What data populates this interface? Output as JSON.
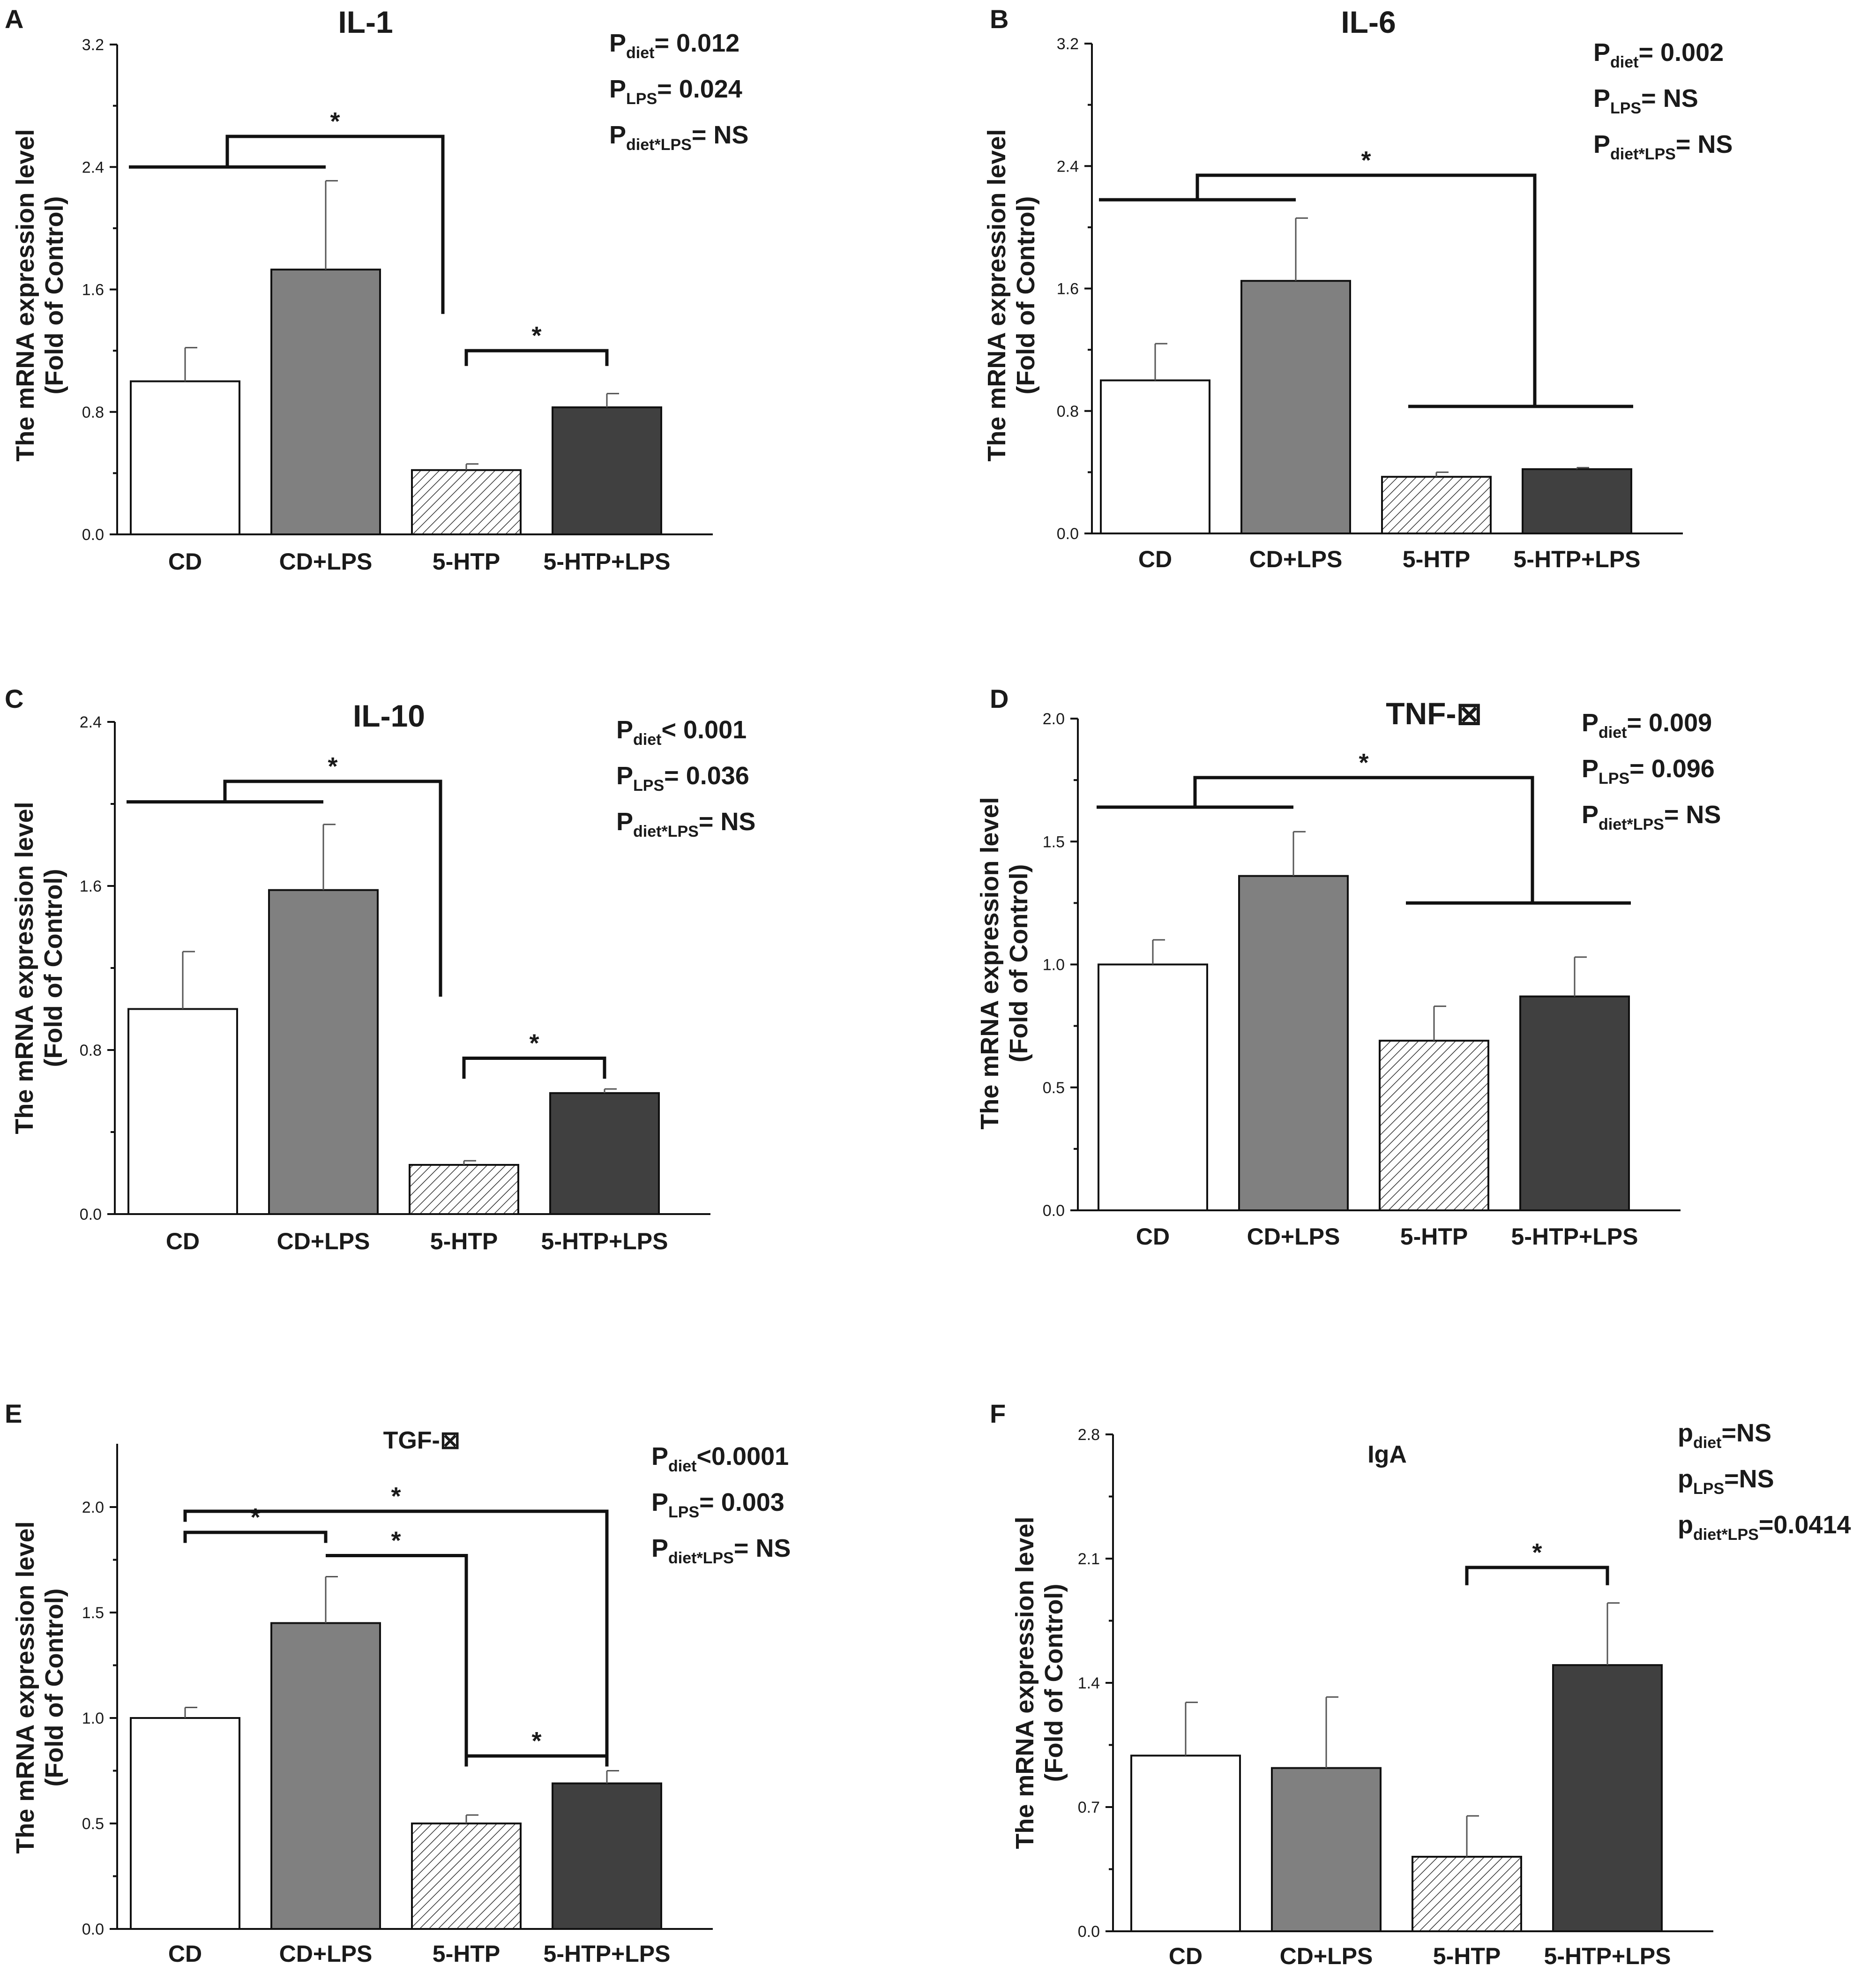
{
  "figure": {
    "panels": [
      {
        "letter": "A",
        "chart_data": {
          "type": "bar",
          "title": "IL-1",
          "title_style": "large",
          "ylabel": [
            "The mRNA expression level",
            "(Fold of Control)"
          ],
          "xlabel": "",
          "categories": [
            "CD",
            "CD+LPS",
            "5-HTP",
            "5-HTP+LPS"
          ],
          "values": [
            1.0,
            1.73,
            0.42,
            0.83
          ],
          "errors": [
            0.22,
            0.58,
            0.04,
            0.09
          ],
          "ylim": [
            0,
            3.2
          ],
          "yticks": [
            0,
            0.8,
            1.6,
            2.4,
            3.2
          ],
          "ytick_labels": [
            "0.0",
            "0.8",
            "1.6",
            "2.4",
            "3.2"
          ],
          "stats": [
            {
              "p": "P",
              "sub": "diet",
              "text": "= 0.012"
            },
            {
              "p": "P",
              "sub": "LPS",
              "text": "= 0.024"
            },
            {
              "p": "P",
              "sub": "diet*LPS",
              "text": "= NS"
            }
          ],
          "significance": [
            {
              "kind": "group",
              "a": [
                0,
                1
              ],
              "b": [
                2
              ],
              "y_a": 2.4,
              "y_top": 2.6,
              "y_b": 1.44,
              "label": "*"
            },
            {
              "kind": "pair",
              "a": 2,
              "b": 3,
              "y_low": 1.1,
              "y_top": 1.2,
              "label": "*"
            }
          ]
        }
      },
      {
        "letter": "B",
        "chart_data": {
          "type": "bar",
          "title": "IL-6",
          "title_style": "large",
          "ylabel": [
            "The mRNA expression level",
            "(Fold of Control)"
          ],
          "xlabel": "",
          "categories": [
            "CD",
            "CD+LPS",
            "5-HTP",
            "5-HTP+LPS"
          ],
          "values": [
            1.0,
            1.65,
            0.37,
            0.42
          ],
          "errors": [
            0.24,
            0.41,
            0.03,
            0.01
          ],
          "ylim": [
            0,
            3.2
          ],
          "yticks": [
            0,
            0.8,
            1.6,
            2.4,
            3.2
          ],
          "ytick_labels": [
            "0.0",
            "0.8",
            "1.6",
            "2.4",
            "3.2"
          ],
          "stats": [
            {
              "p": "P",
              "sub": "diet",
              "text": "= 0.002"
            },
            {
              "p": "P",
              "sub": "LPS",
              "text": "= NS"
            },
            {
              "p": "P",
              "sub": "diet*LPS",
              "text": "= NS"
            }
          ],
          "significance": [
            {
              "kind": "group",
              "a": [
                0,
                1
              ],
              "b": [
                2,
                3
              ],
              "y_a": 2.18,
              "y_top": 2.34,
              "y_b": 0.83,
              "label": "*"
            }
          ]
        }
      },
      {
        "letter": "C",
        "chart_data": {
          "type": "bar",
          "title": "IL-10",
          "title_style": "large",
          "ylabel": [
            "The mRNA expression level",
            "(Fold of Control)"
          ],
          "xlabel": "",
          "categories": [
            "CD",
            "CD+LPS",
            "5-HTP",
            "5-HTP+LPS"
          ],
          "values": [
            1.0,
            1.58,
            0.24,
            0.59
          ],
          "errors": [
            0.28,
            0.32,
            0.02,
            0.02
          ],
          "ylim": [
            0,
            2.4
          ],
          "yticks": [
            0,
            0.8,
            1.6,
            2.4
          ],
          "ytick_labels": [
            "0.0",
            "0.8",
            "1.6",
            "2.4"
          ],
          "stats": [
            {
              "p": "P",
              "sub": "diet",
              "text": "< 0.001"
            },
            {
              "p": "P",
              "sub": "LPS",
              "text": "= 0.036"
            },
            {
              "p": "P",
              "sub": "diet*LPS",
              "text": "= NS"
            }
          ],
          "significance": [
            {
              "kind": "group",
              "a": [
                0,
                1
              ],
              "b": [
                2
              ],
              "y_a": 2.01,
              "y_top": 2.11,
              "y_b": 1.06,
              "label": "*"
            },
            {
              "kind": "pair",
              "a": 2,
              "b": 3,
              "y_low": 0.66,
              "y_top": 0.76,
              "label": "*"
            }
          ]
        }
      },
      {
        "letter": "D",
        "chart_data": {
          "type": "bar",
          "title": "TNF-⊠",
          "title_style": "large",
          "ylabel": [
            "The mRNA expression level",
            "(Fold of Control)"
          ],
          "xlabel": "",
          "categories": [
            "CD",
            "CD+LPS",
            "5-HTP",
            "5-HTP+LPS"
          ],
          "values": [
            1.0,
            1.36,
            0.69,
            0.87
          ],
          "errors": [
            0.1,
            0.18,
            0.14,
            0.16
          ],
          "ylim": [
            0,
            2.0
          ],
          "yticks": [
            0,
            0.5,
            1.0,
            1.5,
            2.0
          ],
          "ytick_labels": [
            "0.0",
            "0.5",
            "1.0",
            "1.5",
            "2.0"
          ],
          "stats": [
            {
              "p": "P",
              "sub": "diet",
              "text": "= 0.009"
            },
            {
              "p": "P",
              "sub": "LPS",
              "text": "= 0.096"
            },
            {
              "p": "P",
              "sub": "diet*LPS",
              "text": "= NS"
            }
          ],
          "significance": [
            {
              "kind": "group",
              "a": [
                0,
                1
              ],
              "b": [
                2,
                3
              ],
              "y_a": 1.64,
              "y_top": 1.76,
              "y_b": 1.25,
              "label": "*"
            }
          ]
        }
      },
      {
        "letter": "E",
        "chart_data": {
          "type": "bar",
          "title": "TGF-⊠",
          "title_style": "small",
          "ylabel": [
            "The mRNA expression level",
            "(Fold of Control)"
          ],
          "xlabel": "",
          "categories": [
            "CD",
            "CD+LPS",
            "5-HTP",
            "5-HTP+LPS"
          ],
          "values": [
            1.0,
            1.45,
            0.5,
            0.69
          ],
          "errors": [
            0.05,
            0.22,
            0.04,
            0.06
          ],
          "ylim": [
            0,
            2.3
          ],
          "yticks": [
            0,
            0.5,
            1.0,
            1.5,
            2.0
          ],
          "ytick_labels": [
            "0.0",
            "0.5",
            "1.0",
            "1.5",
            "2.0"
          ],
          "stats": [
            {
              "p": "P",
              "sub": "diet",
              "text": "<0.0001"
            },
            {
              "p": "P",
              "sub": "LPS",
              "text": "= 0.003"
            },
            {
              "p": "P",
              "sub": "diet*LPS",
              "text": "= NS"
            }
          ],
          "significance": [
            {
              "kind": "pair",
              "a": 0,
              "b": 1,
              "y_low": 1.83,
              "y_top": 1.88,
              "label": "*"
            },
            {
              "kind": "pair",
              "a": 0,
              "b": 3,
              "y_low": 1.93,
              "y_top": 1.98,
              "y_b": 0.78,
              "label": "*"
            },
            {
              "kind": "pair",
              "a": 1,
              "b": 2,
              "y_low": 1.77,
              "y_top": 1.77,
              "y_b": 0.78,
              "label": "*"
            },
            {
              "kind": "pair",
              "a": 2,
              "b": 3,
              "y_low": 0.77,
              "y_top": 0.82,
              "label": "*"
            }
          ]
        }
      },
      {
        "letter": "F",
        "chart_data": {
          "type": "bar",
          "title": "IgA",
          "title_style": "small",
          "ylabel": [
            "The mRNA expression level",
            "(Fold of Control)"
          ],
          "xlabel": "",
          "categories": [
            "CD",
            "CD+LPS",
            "5-HTP",
            "5-HTP+LPS"
          ],
          "values": [
            0.99,
            0.92,
            0.42,
            1.5
          ],
          "errors": [
            0.3,
            0.4,
            0.23,
            0.35
          ],
          "ylim": [
            0,
            2.8
          ],
          "yticks": [
            0,
            0.7,
            1.4,
            2.1,
            2.8
          ],
          "ytick_labels": [
            "0.0",
            "0.7",
            "1.4",
            "2.1",
            "2.8"
          ],
          "stats": [
            {
              "p": "p",
              "sub": "diet",
              "text": "=NS"
            },
            {
              "p": "p",
              "sub": "LPS",
              "text": "=NS"
            },
            {
              "p": "p",
              "sub": "diet*LPS",
              "text": "=0.0414"
            }
          ],
          "significance": [
            {
              "kind": "pair",
              "a": 2,
              "b": 3,
              "y_low": 1.95,
              "y_top": 2.05,
              "label": "*"
            }
          ]
        }
      }
    ],
    "colors": {
      "bar_fills": [
        "#ffffff",
        "#808080",
        "hatch",
        "#404040"
      ],
      "hatch_line": "#333333",
      "axis": "#111111",
      "error_bar": "#555555"
    }
  }
}
